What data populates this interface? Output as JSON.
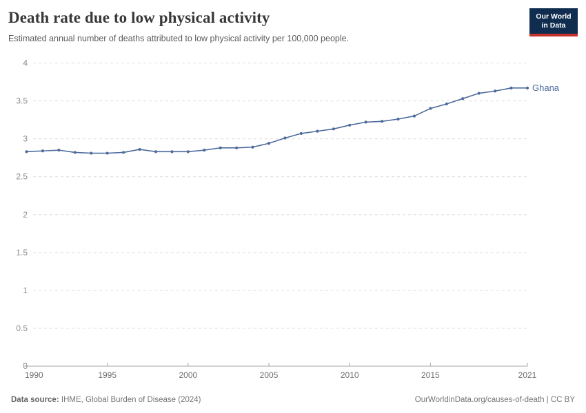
{
  "header": {
    "title": "Death rate due to low physical activity",
    "subtitle": "Estimated annual number of deaths attributed to low physical activity per 100,000 people.",
    "logo_line1": "Our World",
    "logo_line2": "in Data"
  },
  "colors": {
    "line_blue": "#4c6a9c",
    "logo_bg": "#102d50",
    "logo_accent": "#c5332b"
  },
  "chart_data": {
    "type": "line",
    "title": "Death rate due to low physical activity",
    "xlabel": "",
    "ylabel": "",
    "x": [
      1990,
      1991,
      1992,
      1993,
      1994,
      1995,
      1996,
      1997,
      1998,
      1999,
      2000,
      2001,
      2002,
      2003,
      2004,
      2005,
      2006,
      2007,
      2008,
      2009,
      2010,
      2011,
      2012,
      2013,
      2014,
      2015,
      2016,
      2017,
      2018,
      2019,
      2020,
      2021
    ],
    "series": [
      {
        "name": "Ghana",
        "color": "#4c6a9c",
        "values": [
          2.83,
          2.84,
          2.85,
          2.82,
          2.81,
          2.81,
          2.82,
          2.86,
          2.83,
          2.83,
          2.83,
          2.85,
          2.88,
          2.88,
          2.89,
          2.94,
          3.01,
          3.07,
          3.1,
          3.13,
          3.18,
          3.22,
          3.23,
          3.26,
          3.3,
          3.4,
          3.46,
          3.53,
          3.6,
          3.63,
          3.67,
          3.67
        ]
      }
    ],
    "xlim": [
      1990,
      2021
    ],
    "ylim": [
      0,
      4
    ],
    "xticks": [
      1990,
      1995,
      2000,
      2005,
      2010,
      2015,
      2021
    ],
    "yticks": [
      0,
      0.5,
      1,
      1.5,
      2,
      2.5,
      3,
      3.5,
      4
    ],
    "grid": "horizontal-dashed",
    "legend_position": "end-of-line-label",
    "end_label": "Ghana",
    "marker": "dot"
  },
  "footer": {
    "source_label": "Data source:",
    "source_text": "IHME, Global Burden of Disease (2024)",
    "link": "OurWorldinData.org/causes-of-death | CC BY"
  }
}
